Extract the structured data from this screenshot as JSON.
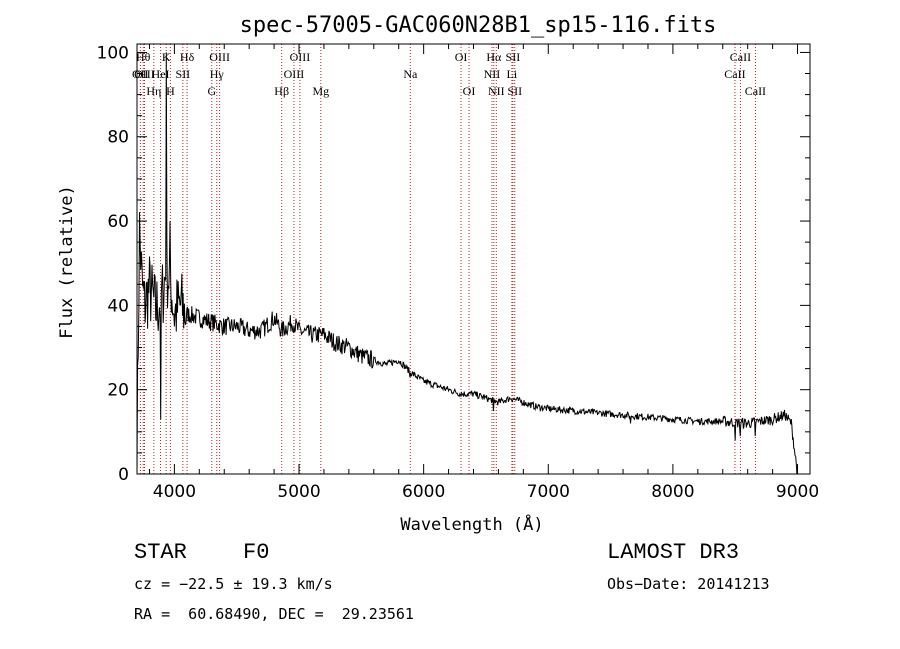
{
  "chart_data": {
    "type": "line",
    "title": "spec-57005-GAC060N28B1_sp15-116.fits",
    "xlabel": "Wavelength (Å)",
    "ylabel": "Flux (relative)",
    "xlim": [
      3700,
      9100
    ],
    "ylim": [
      0,
      102
    ],
    "xticks": [
      4000,
      5000,
      6000,
      7000,
      8000,
      9000
    ],
    "yticks": [
      0,
      20,
      40,
      60,
      80,
      100
    ],
    "spectrum_control_points": [
      [
        3700,
        5
      ],
      [
        3720,
        58
      ],
      [
        3740,
        45
      ],
      [
        3760,
        40
      ],
      [
        3800,
        44
      ],
      [
        3850,
        39
      ],
      [
        3900,
        42
      ],
      [
        3934,
        48
      ],
      [
        3968,
        46
      ],
      [
        4000,
        38
      ],
      [
        4050,
        40
      ],
      [
        4101,
        38
      ],
      [
        4200,
        37
      ],
      [
        4300,
        36
      ],
      [
        4400,
        35
      ],
      [
        4500,
        35
      ],
      [
        4600,
        34
      ],
      [
        4700,
        34
      ],
      [
        4800,
        37
      ],
      [
        4861,
        34
      ],
      [
        4950,
        36
      ],
      [
        5000,
        34
      ],
      [
        5100,
        33
      ],
      [
        5200,
        33
      ],
      [
        5300,
        31
      ],
      [
        5400,
        30
      ],
      [
        5500,
        28
      ],
      [
        5600,
        27
      ],
      [
        5700,
        26
      ],
      [
        5800,
        27
      ],
      [
        5900,
        24
      ],
      [
        6000,
        22
      ],
      [
        6100,
        21
      ],
      [
        6200,
        20
      ],
      [
        6300,
        19
      ],
      [
        6400,
        19
      ],
      [
        6500,
        18
      ],
      [
        6600,
        17
      ],
      [
        6700,
        18
      ],
      [
        6800,
        17
      ],
      [
        6900,
        16
      ],
      [
        7000,
        15.5
      ],
      [
        7200,
        15
      ],
      [
        7400,
        14.5
      ],
      [
        7600,
        14
      ],
      [
        7800,
        13.5
      ],
      [
        8000,
        13
      ],
      [
        8200,
        12.5
      ],
      [
        8400,
        12.5
      ],
      [
        8600,
        12
      ],
      [
        8800,
        13
      ],
      [
        8900,
        14
      ],
      [
        8950,
        12
      ],
      [
        9000,
        0
      ]
    ],
    "spectral_lines": [
      {
        "name": "OII",
        "wavelength": 3727,
        "row": 2
      },
      {
        "name": "Hθ",
        "wavelength": 3750,
        "row": 1
      },
      {
        "name": "OIII",
        "wavelength": 3760,
        "row": 2
      },
      {
        "name": "Hη",
        "wavelength": 3835,
        "row": 3
      },
      {
        "name": "HeI",
        "wavelength": 3889,
        "row": 2
      },
      {
        "name": "K",
        "wavelength": 3934,
        "row": 1
      },
      {
        "name": "H",
        "wavelength": 3968,
        "row": 3
      },
      {
        "name": "SII",
        "wavelength": 4068,
        "row": 2
      },
      {
        "name": "Hδ",
        "wavelength": 4102,
        "row": 1
      },
      {
        "name": "G",
        "wavelength": 4300,
        "row": 3
      },
      {
        "name": "Hγ",
        "wavelength": 4340,
        "row": 2
      },
      {
        "name": "OIII",
        "wavelength": 4363,
        "row": 1
      },
      {
        "name": "Hβ",
        "wavelength": 4861,
        "row": 3
      },
      {
        "name": "OIII",
        "wavelength": 4959,
        "row": 2
      },
      {
        "name": "OIII",
        "wavelength": 5007,
        "row": 1
      },
      {
        "name": "Mg",
        "wavelength": 5175,
        "row": 3
      },
      {
        "name": "Na",
        "wavelength": 5893,
        "row": 2
      },
      {
        "name": "OI",
        "wavelength": 6300,
        "row": 1
      },
      {
        "name": "OI",
        "wavelength": 6364,
        "row": 3
      },
      {
        "name": "NII",
        "wavelength": 6548,
        "row": 2
      },
      {
        "name": "Hα",
        "wavelength": 6563,
        "row": 1
      },
      {
        "name": "NII",
        "wavelength": 6583,
        "row": 3
      },
      {
        "name": "Li",
        "wavelength": 6708,
        "row": 2
      },
      {
        "name": "SII",
        "wavelength": 6716,
        "row": 1
      },
      {
        "name": "SII",
        "wavelength": 6731,
        "row": 3
      },
      {
        "name": "CaII",
        "wavelength": 8498,
        "row": 2
      },
      {
        "name": "CaII",
        "wavelength": 8542,
        "row": 1
      },
      {
        "name": "CaII",
        "wavelength": 8662,
        "row": 3
      }
    ]
  },
  "info": {
    "object_class": "STAR",
    "subclass": "F0",
    "survey": "LAMOST DR3",
    "cz": "cz = −22.5 ± 19.3 km/s",
    "obs_date": "Obs−Date: 20141213",
    "coords": "RA =  60.68490, DEC =  29.23561"
  },
  "colors": {
    "line_marker": "#b22222",
    "spectrum": "#000000",
    "axes": "#000000"
  }
}
